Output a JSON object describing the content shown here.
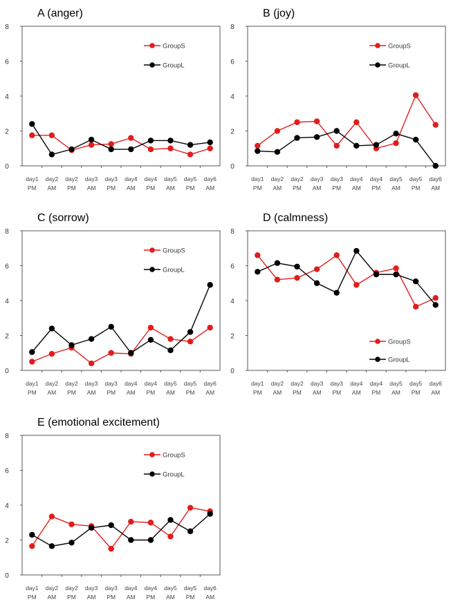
{
  "chart_data": [
    {
      "type": "line",
      "title": "A (anger)",
      "categories": [
        "day1 PM",
        "day2 AM",
        "day2 PM",
        "day3 AM",
        "day3 PM",
        "day4 AM",
        "day4 PM",
        "day5 AM",
        "day5 PM",
        "day6 AM"
      ],
      "ylim": [
        0,
        8
      ],
      "yticks": [
        0,
        2,
        4,
        6,
        8
      ],
      "legend": "top-right",
      "series": [
        {
          "name": "GroupS",
          "color": "#e31c1c",
          "values": [
            1.75,
            1.75,
            0.9,
            1.2,
            1.25,
            1.6,
            0.95,
            1.0,
            0.65,
            1.0
          ]
        },
        {
          "name": "GroupL",
          "color": "#000000",
          "values": [
            2.4,
            0.65,
            0.95,
            1.5,
            0.95,
            0.95,
            1.45,
            1.45,
            1.2,
            1.35
          ]
        }
      ]
    },
    {
      "type": "line",
      "title": "B (joy)",
      "categories": [
        "day1 PM",
        "day2 AM",
        "day2 PM",
        "day3 AM",
        "day3 PM",
        "day4 AM",
        "day4 PM",
        "day5 AM",
        "day5 PM",
        "day6 AM"
      ],
      "ylim": [
        0,
        8
      ],
      "yticks": [
        0,
        2,
        4,
        6,
        8
      ],
      "legend": "top-right",
      "series": [
        {
          "name": "GroupS",
          "color": "#e31c1c",
          "values": [
            1.15,
            2.0,
            2.5,
            2.55,
            1.15,
            2.5,
            1.0,
            1.3,
            4.05,
            2.35
          ]
        },
        {
          "name": "GroupL",
          "color": "#000000",
          "values": [
            0.85,
            0.8,
            1.6,
            1.65,
            2.0,
            1.15,
            1.2,
            1.85,
            1.5,
            0.0
          ]
        }
      ]
    },
    {
      "type": "line",
      "title": "C (sorrow)",
      "categories": [
        "day1 PM",
        "day2 AM",
        "day2 PM",
        "day3 AM",
        "day3 PM",
        "day4 AM",
        "day4 PM",
        "day5 AM",
        "day5 PM",
        "day6 AM"
      ],
      "ylim": [
        0,
        8
      ],
      "yticks": [
        0,
        2,
        4,
        6,
        8
      ],
      "legend": "top-right",
      "series": [
        {
          "name": "GroupS",
          "color": "#e31c1c",
          "values": [
            0.5,
            0.95,
            1.3,
            0.4,
            1.0,
            0.95,
            2.45,
            1.8,
            1.65,
            2.45
          ]
        },
        {
          "name": "GroupL",
          "color": "#000000",
          "values": [
            1.05,
            2.4,
            1.45,
            1.8,
            2.5,
            1.0,
            1.75,
            1.15,
            2.2,
            4.9
          ]
        }
      ]
    },
    {
      "type": "line",
      "title": "D (calmness)",
      "categories": [
        "day1 PM",
        "day2 AM",
        "day2 PM",
        "day3 AM",
        "day3 PM",
        "day4 AM",
        "day4 PM",
        "day5 AM",
        "day5 PM",
        "day6 AM"
      ],
      "ylim": [
        0,
        8
      ],
      "yticks": [
        0,
        2,
        4,
        6,
        8
      ],
      "legend": "bottom-right",
      "series": [
        {
          "name": "GroupS",
          "color": "#e31c1c",
          "values": [
            6.6,
            5.2,
            5.3,
            5.8,
            6.6,
            4.9,
            5.6,
            5.85,
            3.65,
            4.15
          ]
        },
        {
          "name": "GroupL",
          "color": "#000000",
          "values": [
            5.65,
            6.15,
            5.95,
            5.0,
            4.45,
            6.85,
            5.5,
            5.5,
            5.1,
            3.75
          ]
        }
      ]
    },
    {
      "type": "line",
      "title": "E (emotional excitement)",
      "categories": [
        "day1 PM",
        "day2 AM",
        "day2 PM",
        "day3 AM",
        "day3 PM",
        "day4 AM",
        "day4 PM",
        "day5 AM",
        "day5 PM",
        "day6 AM"
      ],
      "ylim": [
        0,
        8
      ],
      "yticks": [
        0,
        2,
        4,
        6,
        8
      ],
      "legend": "top-right",
      "series": [
        {
          "name": "GroupS",
          "color": "#e31c1c",
          "values": [
            1.65,
            3.35,
            2.9,
            2.8,
            1.5,
            3.05,
            3.0,
            2.2,
            3.85,
            3.65
          ]
        },
        {
          "name": "GroupL",
          "color": "#000000",
          "values": [
            2.3,
            1.65,
            1.85,
            2.7,
            2.85,
            2.0,
            2.0,
            3.15,
            2.5,
            3.5
          ]
        }
      ]
    }
  ]
}
